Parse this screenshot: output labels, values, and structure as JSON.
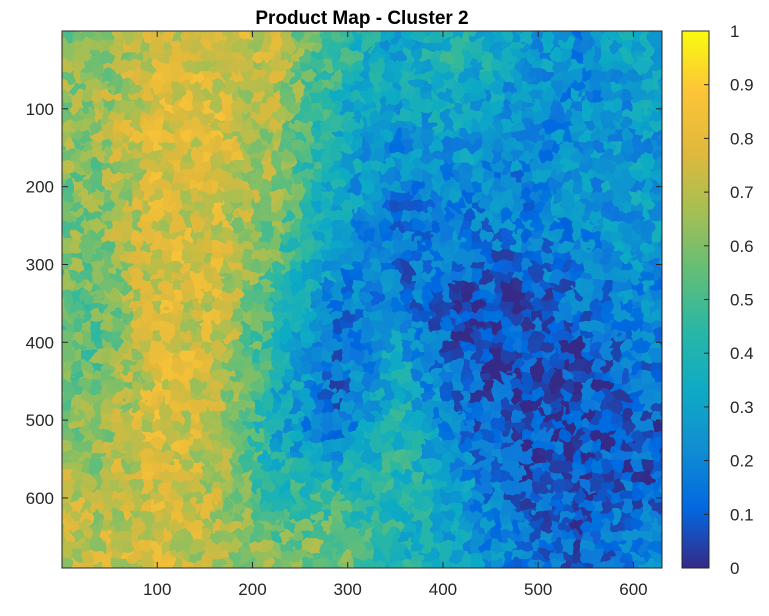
{
  "chart_data": {
    "type": "heatmap",
    "title": "Product Map - Cluster 2",
    "xlabel": "",
    "ylabel": "",
    "xlim": [
      0,
      630
    ],
    "ylim": [
      0,
      690
    ],
    "x_ticks": [
      100,
      200,
      300,
      400,
      500,
      600
    ],
    "y_ticks": [
      100,
      200,
      300,
      400,
      500,
      600
    ],
    "y_reversed": true,
    "colorbar": {
      "colormap": "parula",
      "range": [
        0,
        1
      ],
      "ticks": [
        0,
        0.1,
        0.2,
        0.3,
        0.4,
        0.5,
        0.6,
        0.7,
        0.8,
        0.9,
        1
      ],
      "tick_labels": [
        "0",
        "0.1",
        "0.2",
        "0.3",
        "0.4",
        "0.5",
        "0.6",
        "0.7",
        "0.8",
        "0.9",
        "1"
      ],
      "colors": [
        "#352a87",
        "#0268e1",
        "#108ed2",
        "#0fabc5",
        "#2ab7a4",
        "#64be77",
        "#a7bf52",
        "#e1b93b",
        "#fcc537",
        "#f9fb0e"
      ]
    },
    "value_grid": {
      "cols": 10,
      "rows": 9,
      "cell_width": 63,
      "cell_height": 76.7,
      "values": [
        [
          0.62,
          0.74,
          0.76,
          0.7,
          0.45,
          0.3,
          0.4,
          0.28,
          0.22,
          0.3
        ],
        [
          0.66,
          0.78,
          0.78,
          0.66,
          0.36,
          0.26,
          0.3,
          0.2,
          0.22,
          0.26
        ],
        [
          0.6,
          0.76,
          0.76,
          0.62,
          0.32,
          0.18,
          0.22,
          0.2,
          0.24,
          0.28
        ],
        [
          0.6,
          0.76,
          0.74,
          0.55,
          0.28,
          0.14,
          0.16,
          0.16,
          0.2,
          0.26
        ],
        [
          0.54,
          0.76,
          0.74,
          0.48,
          0.16,
          0.18,
          0.06,
          0.06,
          0.14,
          0.2
        ],
        [
          0.56,
          0.76,
          0.74,
          0.4,
          0.14,
          0.34,
          0.1,
          0.04,
          0.06,
          0.14
        ],
        [
          0.6,
          0.78,
          0.7,
          0.3,
          0.1,
          0.4,
          0.16,
          0.06,
          0.08,
          0.1
        ],
        [
          0.68,
          0.76,
          0.7,
          0.42,
          0.4,
          0.44,
          0.28,
          0.08,
          0.06,
          0.1
        ],
        [
          0.72,
          0.74,
          0.7,
          0.58,
          0.58,
          0.4,
          0.3,
          0.16,
          0.1,
          0.18
        ]
      ]
    }
  }
}
